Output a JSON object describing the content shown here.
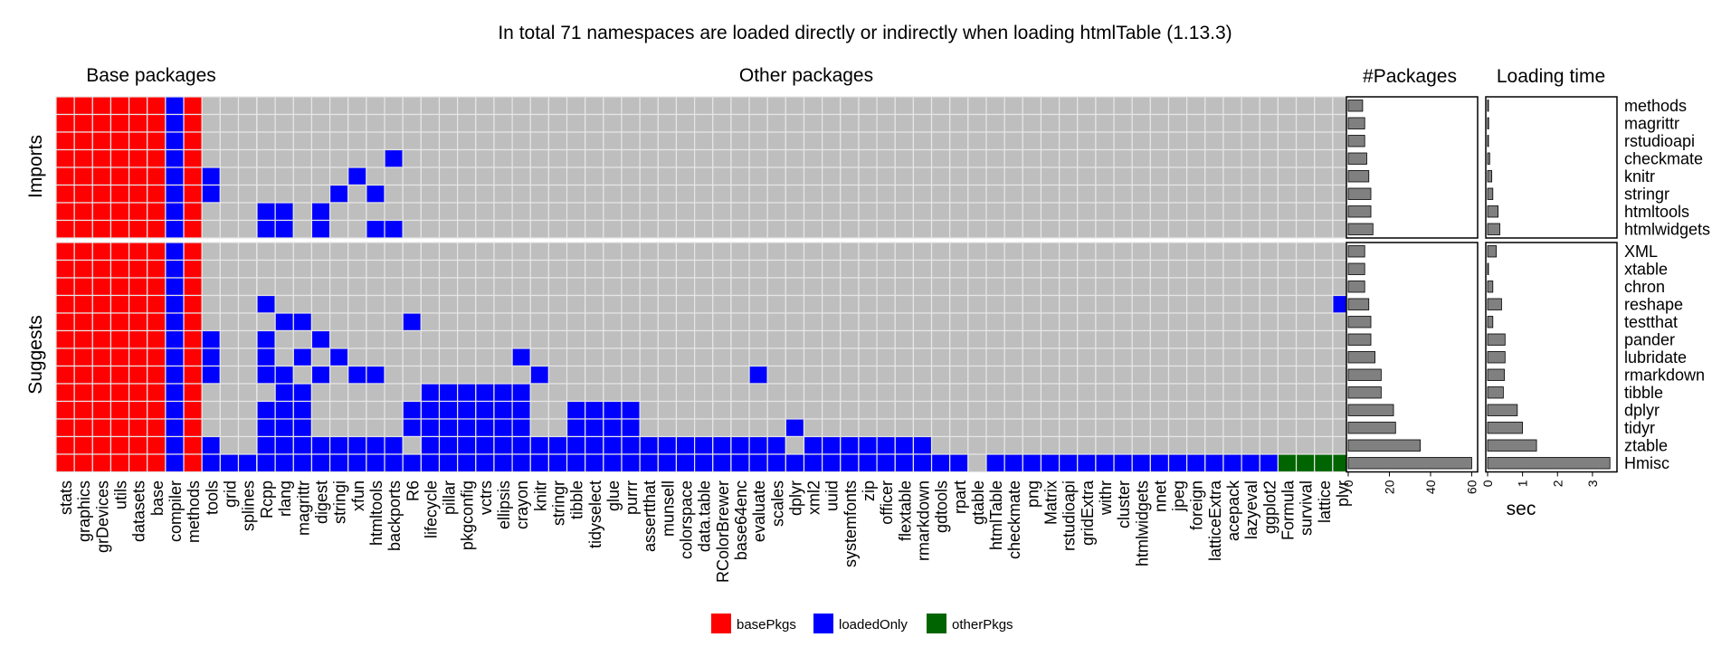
{
  "chart_data": {
    "type": "heatmap",
    "title": "In total 71 namespaces are loaded directly or indirectly when loading htmlTable (1.13.3)",
    "panels": {
      "base": "Base packages",
      "other": "Other packages",
      "count": "#Packages",
      "time": "Loading time"
    },
    "groups": {
      "imports": "Imports",
      "suggests": "Suggests"
    },
    "packages": [
      "methods",
      "magrittr",
      "rstudioapi",
      "checkmate",
      "knitr",
      "stringr",
      "htmltools",
      "htmlwidgets",
      "XML",
      "xtable",
      "chron",
      "reshape",
      "testthat",
      "pander",
      "lubridate",
      "rmarkdown",
      "tibble",
      "dplyr",
      "tidyr",
      "ztable",
      "Hmisc"
    ],
    "base_columns": [
      "stats",
      "graphics",
      "grDevices",
      "utils",
      "datasets",
      "base",
      "compiler",
      "methods",
      "tools",
      "grid",
      "splines"
    ],
    "other_columns": [
      "Rcpp",
      "rlang",
      "magrittr",
      "digest",
      "stringi",
      "xfun",
      "htmltools",
      "backports",
      "R6",
      "lifecycle",
      "pillar",
      "pkgconfig",
      "vctrs",
      "ellipsis",
      "crayon",
      "knitr",
      "stringr",
      "tibble",
      "tidyselect",
      "glue",
      "purrr",
      "assertthat",
      "munsell",
      "colorspace",
      "data.table",
      "RColorBrewer",
      "base64enc",
      "evaluate",
      "scales",
      "dplyr",
      "xml2",
      "uuid",
      "systemfonts",
      "zip",
      "officer",
      "flextable",
      "rmarkdown",
      "gdtools",
      "rpart",
      "gtable",
      "htmlTable",
      "checkmate",
      "png",
      "Matrix",
      "rstudioapi",
      "gridExtra",
      "withr",
      "cluster",
      "htmlwidgets",
      "nnet",
      "jpeg",
      "foreign",
      "latticeExtra",
      "acepack",
      "lazyeval",
      "ggplot2",
      "Formula",
      "survival",
      "lattice",
      "plyr"
    ],
    "cells_base": [
      "bbbbbblbooo",
      "bbbbbblbooo",
      "bbbbbblbooo",
      "bbbbbblbooo",
      "bbbbbblbloo",
      "bbbbbblbloo",
      "bbbbbblbooo",
      "bbbbbblbooo",
      "bbbbbblbooo",
      "bbbbbblbooo",
      "bbbbbblbooo",
      "bbbbbblbooo",
      "bbbbbblbooo",
      "bbbbbblbloo",
      "bbbbbblbloo",
      "bbbbbblbloo",
      "bbbbbblbooo",
      "bbbbbblbooo",
      "bbbbbblbooo",
      "bbbbbblbloo",
      "bbbbbblblll"
    ],
    "cells_other": [
      "............................................................",
      "............................................................",
      "............................................................",
      ".......l....................................................",
      ".....l......................................................",
      "....l.l.....................................................",
      "ll.l........................................................",
      "ll.l..ll....................................................",
      "............................................................",
      "............................................................",
      "............................................................",
      "l..........................................................l",
      ".ll.....l...................................................",
      "l..l........................................................",
      "l.l.l.........l.............................................",
      "ll.l.ll........l...........l................................",
      ".ll......llllll.............................................",
      "lll.....lllllll..llll.......................................",
      "lll.....lllllll..llll........l..............................",
      "llllllll.llllllllllllllllllll.lllllll.......................",
      "lllllllllllllllllllllllllllllllllllllll.llllllllllllllllgggg"
    ],
    "imports_count": 8,
    "n_packages": [
      7,
      8,
      8,
      9,
      10,
      11,
      11,
      12,
      8,
      8,
      8,
      10,
      11,
      11,
      13,
      16,
      16,
      22,
      23,
      35,
      60
    ],
    "load_time_sec": [
      0.01,
      0.03,
      0.02,
      0.06,
      0.12,
      0.15,
      0.3,
      0.35,
      0.25,
      0.02,
      0.15,
      0.4,
      0.15,
      0.5,
      0.5,
      0.48,
      0.45,
      0.85,
      1.0,
      1.4,
      3.5
    ],
    "count_axis": {
      "ticks": [
        0,
        20,
        40,
        60
      ],
      "max": 62
    },
    "time_axis": {
      "label": "sec",
      "ticks": [
        0,
        1,
        2,
        3
      ],
      "max": 3.65
    },
    "legend": [
      {
        "key": "b",
        "label": "basePkgs",
        "color": "#ff0000"
      },
      {
        "key": "l",
        "label": "loadedOnly",
        "color": "#0000ff"
      },
      {
        "key": "g",
        "label": "otherPkgs",
        "color": "#006400"
      }
    ],
    "colors": {
      "empty": "#bebebe",
      "grid": "#e6e6e6",
      "bar": "#808080"
    },
    "legend_position": "bottom"
  }
}
